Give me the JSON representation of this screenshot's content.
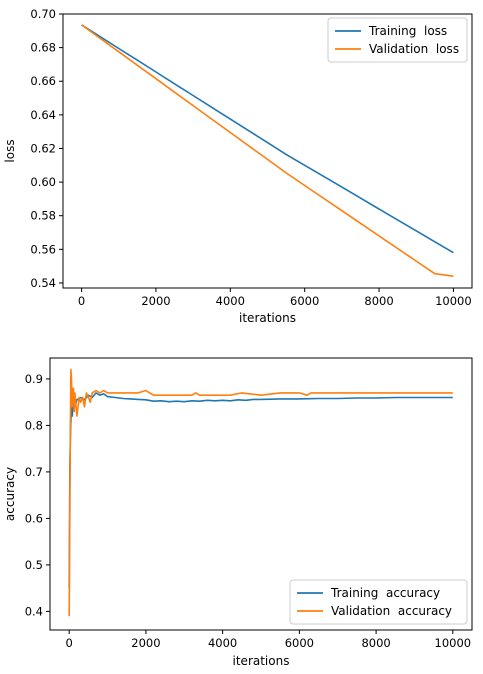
{
  "chart_data": [
    {
      "type": "line",
      "title": "",
      "xlabel": "iterations",
      "ylabel": "loss",
      "xlim": [
        -500,
        10500
      ],
      "ylim": [
        0.537,
        0.7
      ],
      "xticks": [
        0,
        2000,
        4000,
        6000,
        8000,
        10000
      ],
      "xtick_labels": [
        "0",
        "2000",
        "4000",
        "6000",
        "8000",
        "10000"
      ],
      "yticks": [
        0.54,
        0.56,
        0.58,
        0.6,
        0.62,
        0.64,
        0.66,
        0.68,
        0.7
      ],
      "ytick_labels": [
        "0.54",
        "0.56",
        "0.58",
        "0.60",
        "0.62",
        "0.64",
        "0.66",
        "0.68",
        "0.70"
      ],
      "grid": false,
      "legend_position": "top-right",
      "series": [
        {
          "name": "Training  loss",
          "color": "#1f77b4",
          "x": [
            0,
            500,
            1000,
            1500,
            2000,
            2500,
            3000,
            3500,
            4000,
            4500,
            5000,
            5500,
            6000,
            6500,
            7000,
            7500,
            8000,
            8500,
            9000,
            9500,
            10000
          ],
          "y": [
            0.6935,
            0.6865,
            0.6795,
            0.6725,
            0.6655,
            0.6585,
            0.6515,
            0.6445,
            0.6375,
            0.6305,
            0.6235,
            0.6165,
            0.61,
            0.6035,
            0.597,
            0.5905,
            0.584,
            0.5775,
            0.571,
            0.5645,
            0.558
          ]
        },
        {
          "name": "Validation  loss",
          "color": "#ff7f0e",
          "x": [
            0,
            500,
            1000,
            1500,
            2000,
            2500,
            3000,
            3500,
            4000,
            4500,
            5000,
            5500,
            6000,
            6500,
            7000,
            7500,
            8000,
            8500,
            9000,
            9500,
            10000
          ],
          "y": [
            0.6935,
            0.6855,
            0.6775,
            0.6695,
            0.6615,
            0.6535,
            0.6455,
            0.6375,
            0.6295,
            0.6215,
            0.6135,
            0.6055,
            0.598,
            0.5905,
            0.583,
            0.5755,
            0.568,
            0.5605,
            0.553,
            0.5455,
            0.544
          ]
        }
      ]
    },
    {
      "type": "line",
      "title": "",
      "xlabel": "iterations",
      "ylabel": "accuracy",
      "xlim": [
        -500,
        10500
      ],
      "ylim": [
        0.36,
        0.945
      ],
      "xticks": [
        0,
        2000,
        4000,
        6000,
        8000,
        10000
      ],
      "xtick_labels": [
        "0",
        "2000",
        "4000",
        "6000",
        "8000",
        "10000"
      ],
      "yticks": [
        0.4,
        0.5,
        0.6,
        0.7,
        0.8,
        0.9
      ],
      "ytick_labels": [
        "0.4",
        "0.5",
        "0.6",
        "0.7",
        "0.8",
        "0.9"
      ],
      "grid": false,
      "legend_position": "bottom-right",
      "series": [
        {
          "name": "Training  accuracy",
          "color": "#1f77b4",
          "x": [
            0,
            20,
            40,
            60,
            80,
            100,
            150,
            200,
            300,
            400,
            500,
            600,
            700,
            800,
            900,
            1000,
            1200,
            1400,
            1600,
            1800,
            2000,
            2200,
            2400,
            2600,
            2800,
            3000,
            3200,
            3400,
            3600,
            3800,
            4000,
            4200,
            4400,
            4600,
            4800,
            5000,
            5500,
            6000,
            6500,
            7000,
            7500,
            8000,
            8500,
            9000,
            9500,
            10000
          ],
          "y": [
            0.45,
            0.72,
            0.8,
            0.84,
            0.82,
            0.85,
            0.84,
            0.855,
            0.86,
            0.855,
            0.865,
            0.86,
            0.87,
            0.865,
            0.868,
            0.862,
            0.86,
            0.858,
            0.857,
            0.856,
            0.855,
            0.852,
            0.853,
            0.851,
            0.852,
            0.851,
            0.853,
            0.852,
            0.854,
            0.853,
            0.854,
            0.853,
            0.855,
            0.854,
            0.856,
            0.856,
            0.857,
            0.857,
            0.858,
            0.858,
            0.859,
            0.859,
            0.86,
            0.86,
            0.86,
            0.86
          ]
        },
        {
          "name": "Validation  accuracy",
          "color": "#ff7f0e",
          "x": [
            0,
            15,
            30,
            45,
            60,
            75,
            90,
            110,
            130,
            150,
            170,
            200,
            230,
            260,
            300,
            350,
            400,
            450,
            500,
            550,
            600,
            700,
            800,
            900,
            1000,
            1200,
            1500,
            1800,
            2000,
            2100,
            2200,
            2400,
            2800,
            3000,
            3200,
            3300,
            3400,
            3600,
            3800,
            4000,
            4200,
            4500,
            5000,
            5500,
            6000,
            6200,
            6300,
            6500,
            7000,
            8000,
            9000,
            10000
          ],
          "y": [
            0.39,
            0.6,
            0.78,
            0.92,
            0.9,
            0.84,
            0.86,
            0.88,
            0.83,
            0.87,
            0.85,
            0.82,
            0.84,
            0.86,
            0.85,
            0.86,
            0.84,
            0.87,
            0.86,
            0.85,
            0.87,
            0.875,
            0.87,
            0.875,
            0.87,
            0.87,
            0.87,
            0.87,
            0.875,
            0.87,
            0.865,
            0.865,
            0.865,
            0.865,
            0.865,
            0.87,
            0.865,
            0.865,
            0.865,
            0.865,
            0.865,
            0.87,
            0.865,
            0.87,
            0.87,
            0.865,
            0.87,
            0.87,
            0.87,
            0.87,
            0.87,
            0.87
          ]
        }
      ]
    }
  ]
}
